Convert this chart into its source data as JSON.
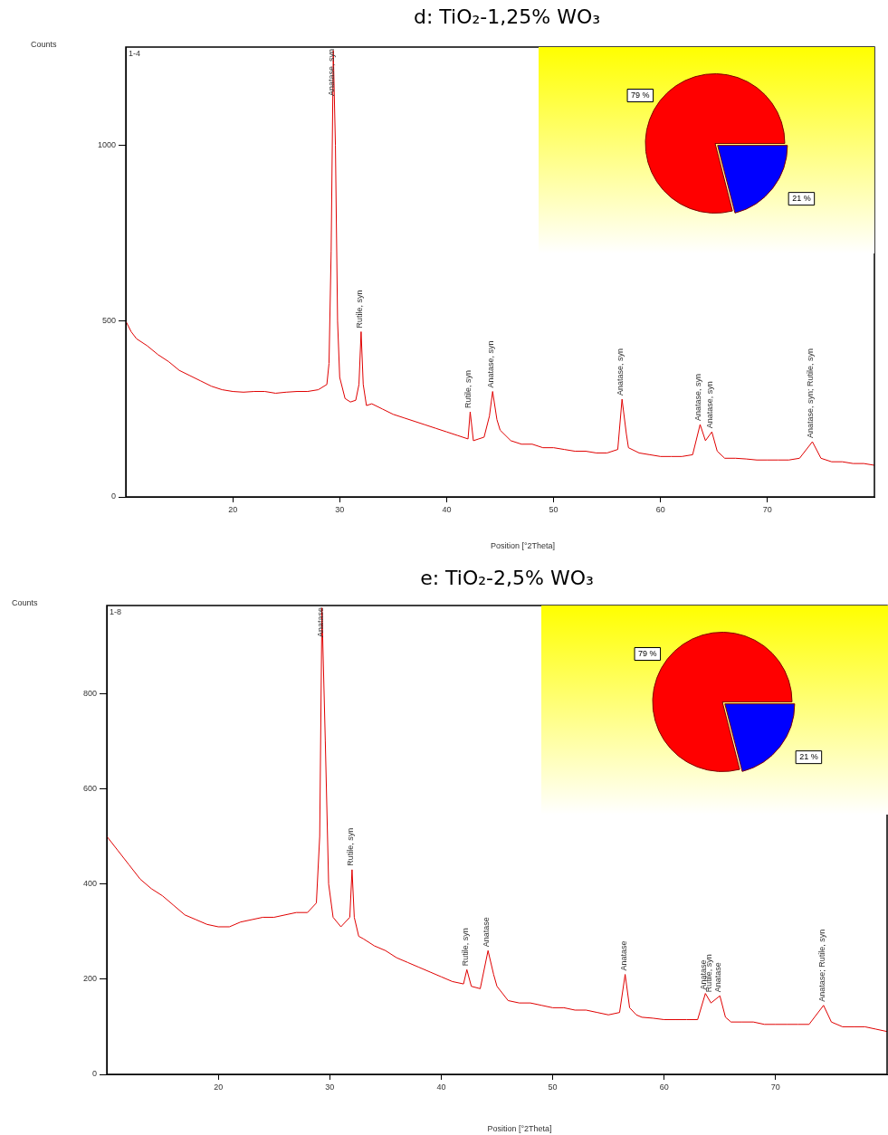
{
  "chart_data": [
    {
      "type": "line",
      "title": "d: TiO₂-1,25% WO₃",
      "xlabel": "Position [°2Theta]",
      "ylabel": "Counts",
      "xlim": [
        10,
        80
      ],
      "xticks": [
        20,
        30,
        40,
        50,
        60,
        70
      ],
      "ylim": [
        0,
        1280
      ],
      "yticks": [
        0,
        500,
        1000
      ],
      "grid": false,
      "legend": false,
      "marker": "none",
      "line_style": "solid",
      "series": [
        {
          "color": "#e00000",
          "x": [
            10,
            10.5,
            11,
            12,
            13,
            14,
            15,
            16,
            17,
            18,
            19,
            20,
            21,
            22,
            23,
            24,
            25,
            26,
            27,
            28,
            28.8,
            29.0,
            29.2,
            29.4,
            29.6,
            29.8,
            30.0,
            30.5,
            31,
            31.5,
            31.8,
            32.0,
            32.2,
            32.5,
            33,
            34,
            35,
            36,
            37,
            38,
            39,
            40,
            41,
            42,
            42.2,
            42.5,
            43,
            43.5,
            44.0,
            44.3,
            44.7,
            45,
            46,
            47,
            48,
            49,
            50,
            51,
            52,
            53,
            54,
            55,
            56,
            56.4,
            56.8,
            57,
            58,
            59,
            60,
            61,
            62,
            63,
            63.7,
            64.2,
            64.8,
            65.3,
            66,
            67,
            68,
            69,
            70,
            71,
            72,
            73,
            74.2,
            75,
            76,
            77,
            78,
            79,
            80
          ],
          "values": [
            500,
            470,
            450,
            430,
            405,
            385,
            360,
            345,
            330,
            315,
            305,
            300,
            298,
            300,
            300,
            295,
            298,
            300,
            300,
            305,
            320,
            380,
            700,
            1270,
            1000,
            500,
            340,
            280,
            270,
            275,
            320,
            470,
            320,
            260,
            265,
            250,
            235,
            225,
            215,
            205,
            195,
            185,
            175,
            165,
            242,
            160,
            165,
            170,
            230,
            300,
            220,
            190,
            160,
            150,
            150,
            140,
            140,
            135,
            130,
            130,
            125,
            125,
            135,
            278,
            180,
            140,
            125,
            120,
            115,
            115,
            115,
            120,
            206,
            160,
            185,
            130,
            110,
            110,
            108,
            105,
            105,
            105,
            105,
            110,
            157,
            110,
            100,
            100,
            95,
            95,
            90
          ]
        }
      ],
      "annotations": [
        "1-4",
        {
          "text": "Anatase, syn",
          "x": 29.4,
          "y": 1270
        },
        {
          "text": "Rutile, syn",
          "x": 32.0,
          "y": 470
        },
        {
          "text": "Rutile, syn",
          "x": 42.2,
          "y": 242
        },
        {
          "text": "Anatase, syn",
          "x": 44.3,
          "y": 300
        },
        {
          "text": "Anatase, syn",
          "x": 56.4,
          "y": 278
        },
        {
          "text": "Anatase, syn",
          "x": 63.7,
          "y": 206
        },
        {
          "text": "Anatase, syn",
          "x": 64.8,
          "y": 185
        },
        {
          "text": "Anatase, syn; Rutile, syn",
          "x": 74.2,
          "y": 157
        }
      ]
    },
    {
      "type": "pie",
      "categories": [
        null,
        null
      ],
      "values": [
        79,
        21
      ],
      "colors": [
        "#ff0000",
        "#0000ff"
      ],
      "value_labels": [
        "79 %",
        "21 %"
      ],
      "legend": false
    },
    {
      "type": "line",
      "title": "e: TiO₂-2,5% WO₃",
      "xlabel": "Position [°2Theta]",
      "ylabel": "Counts",
      "xlim": [
        10,
        80
      ],
      "xticks": [
        20,
        30,
        40,
        50,
        60,
        70
      ],
      "ylim": [
        0,
        985
      ],
      "yticks": [
        0,
        200,
        400,
        600,
        800
      ],
      "grid": false,
      "legend": false,
      "marker": "none",
      "line_style": "solid",
      "series": [
        {
          "color": "#e00000",
          "x": [
            10,
            11,
            12,
            13,
            14,
            15,
            16,
            17,
            18,
            19,
            20,
            21,
            22,
            23,
            24,
            25,
            26,
            27,
            28,
            28.8,
            29.1,
            29.3,
            29.6,
            29.9,
            30.3,
            31,
            31.8,
            32.0,
            32.2,
            32.6,
            33,
            34,
            35,
            36,
            37,
            38,
            39,
            40,
            41,
            42,
            42.3,
            42.7,
            43.5,
            44.2,
            44.7,
            45,
            46,
            47,
            48,
            49,
            50,
            51,
            52,
            53,
            54,
            55,
            56,
            56.5,
            56.9,
            57.5,
            58,
            59,
            60,
            61,
            62,
            63,
            63.7,
            64.2,
            65.0,
            65.5,
            66,
            67,
            68,
            69,
            70,
            71,
            72,
            73,
            74.3,
            75,
            76,
            77,
            78,
            79,
            80
          ],
          "values": [
            500,
            470,
            440,
            410,
            390,
            375,
            355,
            335,
            325,
            315,
            310,
            310,
            320,
            325,
            330,
            330,
            335,
            340,
            340,
            360,
            500,
            980,
            700,
            400,
            330,
            310,
            330,
            430,
            330,
            290,
            285,
            270,
            260,
            245,
            235,
            225,
            215,
            205,
            195,
            190,
            220,
            185,
            180,
            260,
            210,
            185,
            155,
            150,
            150,
            145,
            140,
            140,
            135,
            135,
            130,
            125,
            130,
            210,
            140,
            125,
            120,
            118,
            115,
            115,
            115,
            115,
            170,
            150,
            165,
            120,
            110,
            110,
            110,
            105,
            105,
            105,
            105,
            105,
            145,
            110,
            100,
            100,
            100,
            95,
            90
          ]
        }
      ],
      "annotations": [
        "1-8",
        {
          "text": "Anatase",
          "x": 29.3,
          "y": 980
        },
        {
          "text": "Rutile, syn",
          "x": 32.0,
          "y": 430
        },
        {
          "text": "Rutile, syn",
          "x": 42.3,
          "y": 220
        },
        {
          "text": "Anatase",
          "x": 44.2,
          "y": 260
        },
        {
          "text": "Anatase",
          "x": 56.5,
          "y": 210
        },
        {
          "text": "Anatase",
          "x": 63.7,
          "y": 170
        },
        {
          "text": "Rutile, syn",
          "x": 64.2,
          "y": 165
        },
        {
          "text": "Anatase",
          "x": 65.0,
          "y": 165
        },
        {
          "text": "Anatase; Rutile, syn",
          "x": 74.3,
          "y": 145
        }
      ]
    },
    {
      "type": "pie",
      "categories": [
        null,
        null
      ],
      "values": [
        79,
        21
      ],
      "colors": [
        "#ff0000",
        "#0000ff"
      ],
      "value_labels": [
        "79 %",
        "21 %"
      ],
      "legend": false
    }
  ]
}
